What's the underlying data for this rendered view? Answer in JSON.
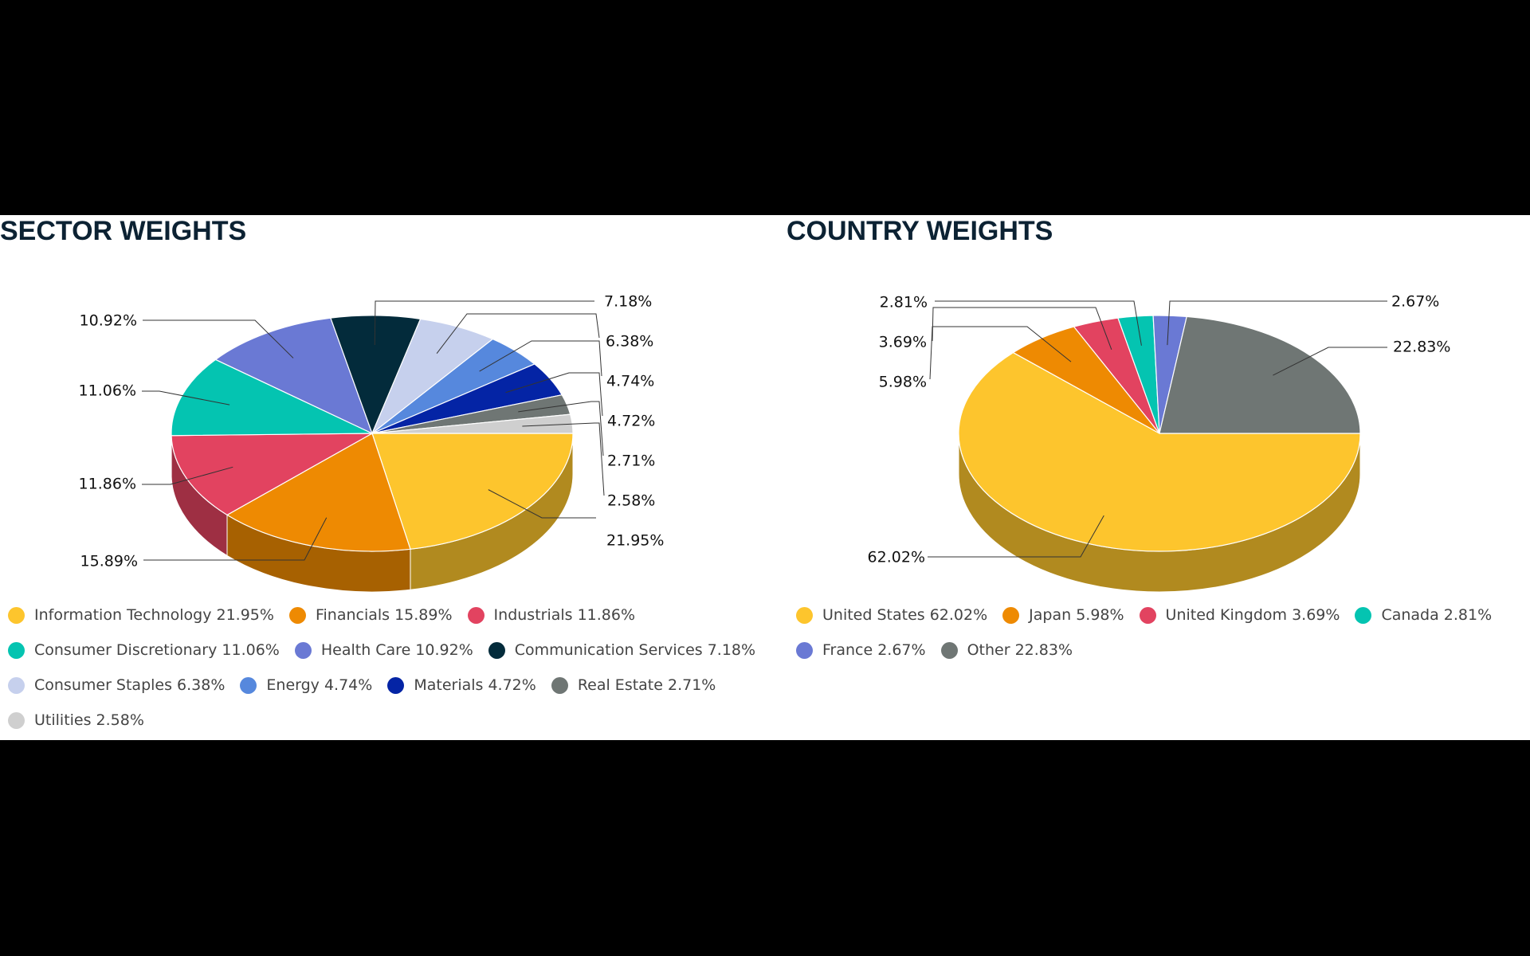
{
  "colors": {
    "background": "#000000",
    "panel": "#ffffff",
    "title": "#0c2233",
    "label_line": "#333333"
  },
  "sector": {
    "title": "SECTOR WEIGHTS"
  },
  "country": {
    "title": "COUNTRY WEIGHTS"
  },
  "chart_data": [
    {
      "type": "pie",
      "variant": "3d",
      "title": "SECTOR WEIGHTS",
      "legend_position": "bottom",
      "unit": "%",
      "categories": [
        "Information Technology",
        "Financials",
        "Industrials",
        "Consumer Discretionary",
        "Health Care",
        "Communication Services",
        "Consumer Staples",
        "Energy",
        "Materials",
        "Real Estate",
        "Utilities"
      ],
      "values": [
        21.95,
        15.89,
        11.86,
        11.06,
        10.92,
        7.18,
        6.38,
        4.74,
        4.72,
        2.71,
        2.58
      ],
      "labels": [
        "21.95%",
        "15.89%",
        "11.86%",
        "11.06%",
        "10.92%",
        "7.18%",
        "6.38%",
        "4.74%",
        "4.72%",
        "2.71%",
        "2.58%"
      ],
      "legend_entries": [
        "Information Technology 21.95%",
        "Financials 15.89%",
        "Industrials 11.86%",
        "Consumer Discretionary 11.06%",
        "Health Care 10.92%",
        "Communication Services 7.18%",
        "Consumer Staples 6.38%",
        "Energy 4.74%",
        "Materials 4.72%",
        "Real Estate 2.71%",
        "Utilities 2.58%"
      ],
      "colors": [
        "#fdc52d",
        "#ee8a02",
        "#e24360",
        "#04c4b1",
        "#6a79d4",
        "#032b3b",
        "#c6d0ed",
        "#5688dd",
        "#0424a5",
        "#6f7674",
        "#cfcfcf"
      ]
    },
    {
      "type": "pie",
      "variant": "3d",
      "title": "COUNTRY WEIGHTS",
      "legend_position": "bottom",
      "unit": "%",
      "categories": [
        "United States",
        "Japan",
        "United Kingdom",
        "Canada",
        "France",
        "Other"
      ],
      "values": [
        62.02,
        5.98,
        3.69,
        2.81,
        2.67,
        22.83
      ],
      "labels": [
        "62.02%",
        "5.98%",
        "3.69%",
        "2.81%",
        "2.67%",
        "22.83%"
      ],
      "legend_entries": [
        "United States 62.02%",
        "Japan 5.98%",
        "United Kingdom 3.69%",
        "Canada 2.81%",
        "France 2.67%",
        "Other 22.83%"
      ],
      "colors": [
        "#fdc52d",
        "#ee8a02",
        "#e24360",
        "#04c4b1",
        "#6a79d4",
        "#6f7674"
      ]
    }
  ]
}
